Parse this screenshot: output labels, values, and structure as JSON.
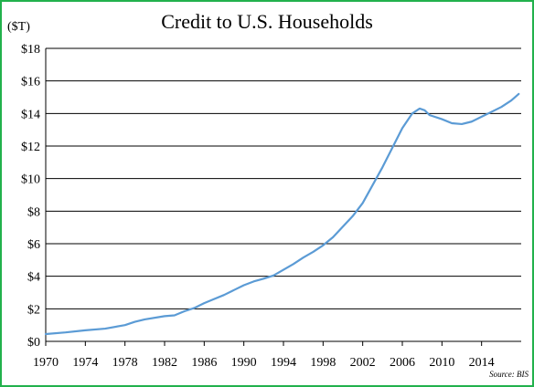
{
  "chart_data": {
    "type": "line",
    "title": "Credit to U.S. Households",
    "y_unit_label": "($T)",
    "source_note": "Source: BIS",
    "xlim": [
      1970,
      2018
    ],
    "ylim": [
      0,
      18
    ],
    "grid": true,
    "y_ticks": [
      {
        "value": 0,
        "label": "$0"
      },
      {
        "value": 2,
        "label": "$2"
      },
      {
        "value": 4,
        "label": "$4"
      },
      {
        "value": 6,
        "label": "$6"
      },
      {
        "value": 8,
        "label": "$8"
      },
      {
        "value": 10,
        "label": "$10"
      },
      {
        "value": 12,
        "label": "$12"
      },
      {
        "value": 14,
        "label": "$14"
      },
      {
        "value": 16,
        "label": "$16"
      },
      {
        "value": 18,
        "label": "$18"
      }
    ],
    "x_ticks": [
      {
        "value": 1970,
        "label": "1970"
      },
      {
        "value": 1974,
        "label": "1974"
      },
      {
        "value": 1978,
        "label": "1978"
      },
      {
        "value": 1982,
        "label": "1982"
      },
      {
        "value": 1986,
        "label": "1986"
      },
      {
        "value": 1990,
        "label": "1990"
      },
      {
        "value": 1994,
        "label": "1994"
      },
      {
        "value": 1998,
        "label": "1998"
      },
      {
        "value": 2002,
        "label": "2002"
      },
      {
        "value": 2006,
        "label": "2006"
      },
      {
        "value": 2010,
        "label": "2010"
      },
      {
        "value": 2014,
        "label": "2014"
      }
    ],
    "series": [
      {
        "color": "#5b9bd5",
        "x": [
          1970,
          1972,
          1974,
          1976,
          1978,
          1979,
          1980,
          1982,
          1983,
          1984,
          1985,
          1986,
          1987,
          1988,
          1989,
          1990,
          1991,
          1992,
          1993,
          1994,
          1995,
          1996,
          1997,
          1998,
          1999,
          2000,
          2001,
          2002,
          2003,
          2004,
          2005,
          2006,
          2007,
          2007.75,
          2008.25,
          2008.75,
          2009,
          2010,
          2011,
          2012,
          2013,
          2014,
          2015,
          2016,
          2017,
          2017.75
        ],
        "y": [
          0.45,
          0.55,
          0.68,
          0.78,
          1.0,
          1.2,
          1.35,
          1.55,
          1.6,
          1.85,
          2.05,
          2.35,
          2.6,
          2.85,
          3.15,
          3.45,
          3.68,
          3.85,
          4.05,
          4.4,
          4.75,
          5.15,
          5.5,
          5.9,
          6.4,
          7.05,
          7.7,
          8.5,
          9.6,
          10.7,
          11.9,
          13.1,
          14.0,
          14.3,
          14.2,
          13.9,
          13.85,
          13.65,
          13.4,
          13.35,
          13.5,
          13.8,
          14.1,
          14.4,
          14.8,
          15.2
        ]
      }
    ]
  }
}
